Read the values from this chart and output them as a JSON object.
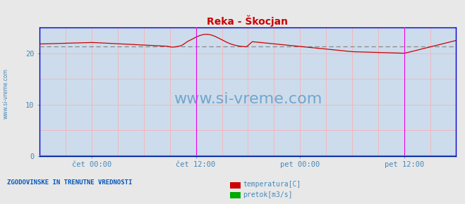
{
  "title": "Reka - Škocjan",
  "title_color": "#cc0000",
  "bg_color": "#e8e8e8",
  "plot_bg_color": "#ccdcec",
  "xlim": [
    0,
    575
  ],
  "ylim": [
    0,
    25
  ],
  "yticks": [
    0,
    10,
    20
  ],
  "xtick_labels": [
    "čet 00:00",
    "čet 12:00",
    "pet 00:00",
    "pet 12:00"
  ],
  "xtick_positions": [
    72,
    216,
    360,
    504
  ],
  "grid_color_v": "#ffaaaa",
  "grid_color_h": "#ffaaaa",
  "avg_line_value": 21.3,
  "avg_line_color": "#888888",
  "temp_line_color": "#cc0000",
  "pretok_line_color": "#00aa00",
  "vertical_line1_x": 216,
  "vertical_line2_x": 504,
  "vertical_line_color": "#ee00ee",
  "watermark_text": "www.si-vreme.com",
  "watermark_color": "#4488bb",
  "watermark_fontsize": 16,
  "legend_label1": "temperatura[C]",
  "legend_label2": "pretok[m3/s]",
  "legend_color1": "#cc0000",
  "legend_color2": "#00aa00",
  "footer_text": "ZGODOVINSKE IN TRENUTNE VREDNOSTI",
  "footer_color": "#0055bb",
  "axis_label_color": "#4488bb",
  "axis_label_fontsize": 7.5,
  "left_label": "www.si-vreme.com",
  "left_label_color": "#4488bb",
  "spine_color": "#0000cc"
}
